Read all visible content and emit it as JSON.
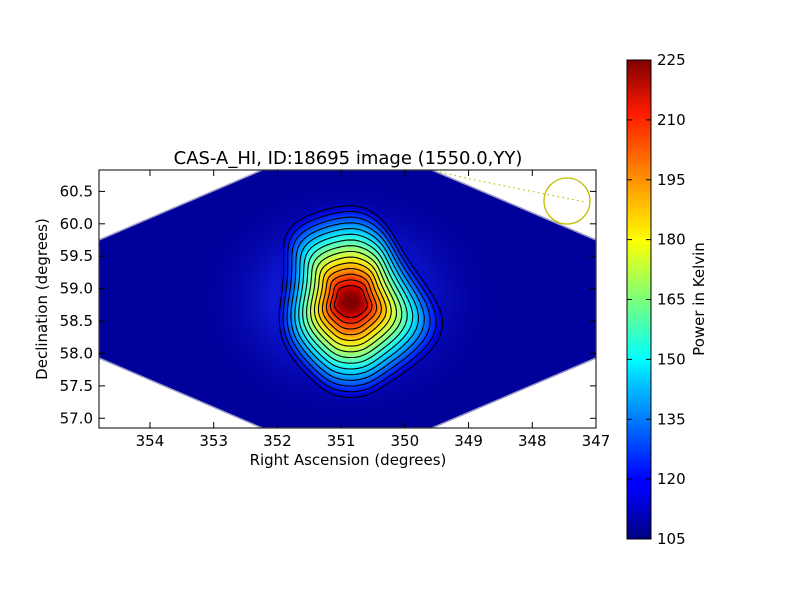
{
  "chart_data": {
    "type": "heatmap",
    "title": "CAS-A_HI, ID:18695 image (1550.0,YY)",
    "xlabel": "Right Ascension (degrees)",
    "ylabel": "Declination (degrees)",
    "x_ticks": [
      354,
      353,
      352,
      351,
      350,
      349,
      348,
      347
    ],
    "y_ticks": [
      "57.0",
      "57.5",
      "58.0",
      "58.5",
      "59.0",
      "59.5",
      "60.0",
      "60.5"
    ],
    "xlim": [
      354.8,
      347.0
    ],
    "ylim": [
      56.85,
      60.83
    ],
    "x_inverted": true,
    "colormap": "jet",
    "colorbar": {
      "label": "Power in Kelvin",
      "min": 105,
      "max": 225,
      "ticks": [
        "105",
        "120",
        "135",
        "150",
        "165",
        "180",
        "195",
        "210",
        "225"
      ]
    },
    "peak": {
      "ra": 350.85,
      "dec": 58.8,
      "value": 225
    },
    "background_value": 105,
    "annotation": {
      "type": "circle",
      "color": "#bfbf00",
      "ra": 347.5,
      "dec": 60.37
    }
  }
}
